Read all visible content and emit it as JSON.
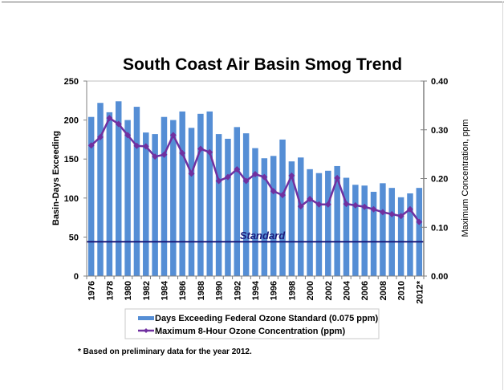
{
  "chart_data": {
    "type": "bar",
    "title": "South Coast Air Basin Smog Trend",
    "xlabel": "",
    "ylabel": "Basin-Days Exceeding",
    "y2label": "Maximum Concentration, ppm",
    "categories": [
      "1976",
      "1977",
      "1978",
      "1979",
      "1980",
      "1981",
      "1982",
      "1983",
      "1984",
      "1985",
      "1986",
      "1987",
      "1988",
      "1989",
      "1990",
      "1991",
      "1992",
      "1993",
      "1994",
      "1995",
      "1996",
      "1997",
      "1998",
      "1999",
      "2000",
      "2001",
      "2002",
      "2003",
      "2004",
      "2005",
      "2006",
      "2007",
      "2008",
      "2009",
      "2010",
      "2011",
      "2012*"
    ],
    "x_tick_labels": [
      "1976",
      "1978",
      "1980",
      "1982",
      "1984",
      "1986",
      "1988",
      "1990",
      "1992",
      "1994",
      "1996",
      "1998",
      "2000",
      "2002",
      "2004",
      "2006",
      "2008",
      "2010",
      "2012*"
    ],
    "ylim": [
      0,
      250
    ],
    "yticks": [
      "0",
      "50",
      "100",
      "150",
      "200",
      "250"
    ],
    "y2lim": [
      0,
      0.4
    ],
    "y2ticks": [
      "0.00",
      "0.10",
      "0.20",
      "0.30",
      "0.40"
    ],
    "grid": false,
    "legend_position": "bottom",
    "series": [
      {
        "name": "Days Exceeding Federal Ozone Standard (0.075 ppm)",
        "type": "bar",
        "axis": "left",
        "color": "#558ED5",
        "values": [
          204,
          222,
          210,
          224,
          200,
          217,
          184,
          182,
          204,
          200,
          211,
          190,
          208,
          211,
          182,
          176,
          191,
          183,
          164,
          151,
          154,
          175,
          147,
          152,
          137,
          132,
          135,
          141,
          126,
          117,
          116,
          108,
          119,
          113,
          101,
          106,
          113
        ]
      },
      {
        "name": "Maximum 8-Hour Ozone Concentration (ppm)",
        "type": "line",
        "axis": "right",
        "color": "#7030A0",
        "marker": "diamond",
        "values": [
          0.268,
          0.285,
          0.324,
          0.312,
          0.289,
          0.267,
          0.266,
          0.245,
          0.249,
          0.289,
          0.252,
          0.21,
          0.261,
          0.254,
          0.195,
          0.203,
          0.219,
          0.195,
          0.209,
          0.203,
          0.174,
          0.166,
          0.206,
          0.143,
          0.158,
          0.147,
          0.147,
          0.201,
          0.148,
          0.145,
          0.142,
          0.137,
          0.131,
          0.127,
          0.123,
          0.137,
          0.111
        ]
      }
    ],
    "annotations": [
      {
        "type": "hline",
        "label": "Standard",
        "value_days": 44,
        "value_ppm": 0.075,
        "color": "#1a1a7a"
      }
    ],
    "footnote": "* Based on preliminary data for the year 2012."
  }
}
